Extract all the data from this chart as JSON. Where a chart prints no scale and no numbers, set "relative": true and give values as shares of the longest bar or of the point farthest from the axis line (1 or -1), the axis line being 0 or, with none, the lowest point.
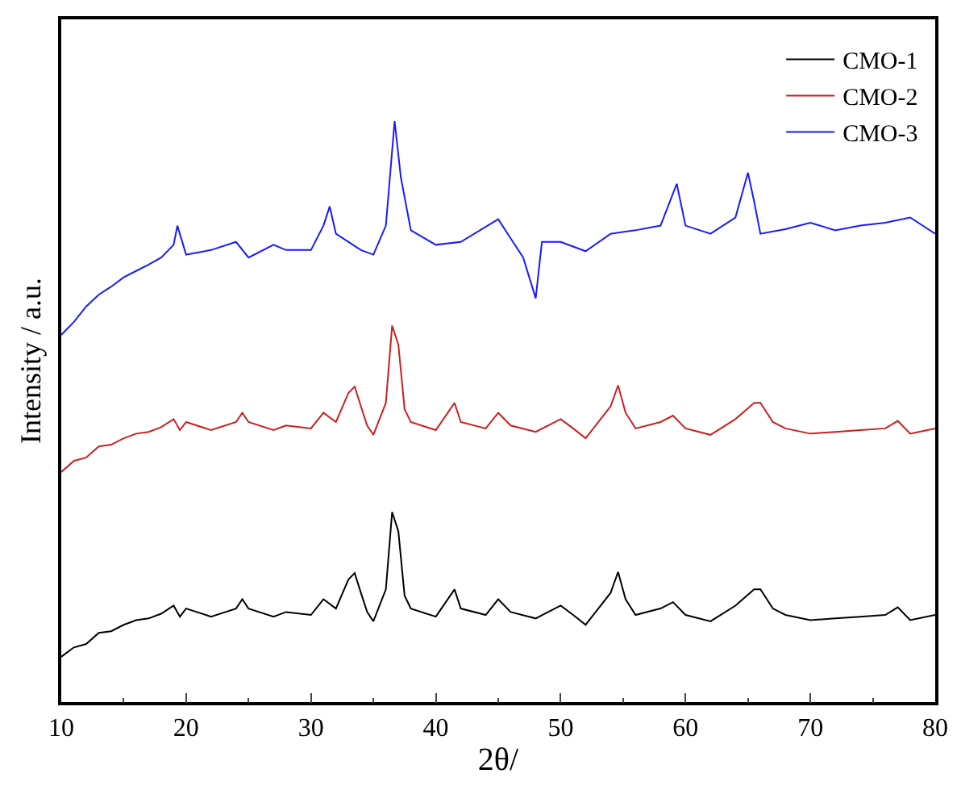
{
  "chart_data": {
    "type": "line",
    "xlabel": "2θ/",
    "ylabel": "Intensity / a.u.",
    "relative": true,
    "xlim": [
      10,
      80
    ],
    "xticks": [
      10,
      20,
      30,
      40,
      50,
      60,
      70,
      80
    ],
    "tick_labels": "x",
    "legend": "top right",
    "series": [
      {
        "name": "CMO-1",
        "color": "#000000",
        "x": [
          10,
          11,
          12,
          13,
          14,
          15,
          16,
          17,
          18,
          19,
          19.5,
          20,
          22,
          24,
          24.5,
          25,
          27,
          28,
          30,
          31,
          32,
          33,
          33.5,
          34,
          34.5,
          35,
          36,
          36.5,
          37,
          37.5,
          38,
          40,
          41.5,
          42,
          44,
          45,
          46,
          48,
          50,
          51,
          52,
          54,
          54.6,
          55.2,
          56,
          58,
          59,
          60,
          62,
          64,
          65.5,
          66,
          67,
          68,
          70,
          72,
          74,
          76,
          77,
          78,
          80
        ],
        "values": [
          0.078,
          0.094,
          0.1,
          0.119,
          0.122,
          0.133,
          0.141,
          0.144,
          0.152,
          0.166,
          0.147,
          0.161,
          0.147,
          0.161,
          0.177,
          0.161,
          0.147,
          0.155,
          0.15,
          0.177,
          0.161,
          0.211,
          0.222,
          0.188,
          0.155,
          0.139,
          0.194,
          0.327,
          0.294,
          0.183,
          0.161,
          0.147,
          0.194,
          0.161,
          0.15,
          0.177,
          0.155,
          0.144,
          0.166,
          0.15,
          0.133,
          0.188,
          0.224,
          0.177,
          0.15,
          0.161,
          0.172,
          0.15,
          0.139,
          0.166,
          0.194,
          0.194,
          0.161,
          0.15,
          0.141,
          0.144,
          0.147,
          0.15,
          0.163,
          0.141,
          0.15
        ]
      },
      {
        "name": "CMO-2",
        "color": "#cc1f1f",
        "x": [
          10,
          11,
          12,
          13,
          14,
          15,
          16,
          17,
          18,
          19,
          19.5,
          20,
          22,
          24,
          24.5,
          25,
          27,
          28,
          30,
          31,
          32,
          33,
          33.5,
          34,
          34.5,
          35,
          36,
          36.5,
          37,
          37.5,
          38,
          40,
          41.5,
          42,
          44,
          45,
          46,
          48,
          50,
          51,
          52,
          54,
          54.6,
          55.2,
          56,
          58,
          59,
          60,
          62,
          64,
          65.5,
          66,
          67,
          68,
          70,
          72,
          74,
          76,
          77,
          78,
          80
        ],
        "values": [
          0.396,
          0.415,
          0.421,
          0.44,
          0.443,
          0.454,
          0.462,
          0.465,
          0.473,
          0.487,
          0.468,
          0.482,
          0.468,
          0.482,
          0.498,
          0.482,
          0.468,
          0.476,
          0.471,
          0.498,
          0.482,
          0.532,
          0.543,
          0.509,
          0.476,
          0.46,
          0.515,
          0.648,
          0.615,
          0.504,
          0.482,
          0.468,
          0.515,
          0.482,
          0.471,
          0.498,
          0.476,
          0.465,
          0.487,
          0.471,
          0.454,
          0.509,
          0.545,
          0.498,
          0.471,
          0.482,
          0.493,
          0.471,
          0.46,
          0.487,
          0.515,
          0.515,
          0.482,
          0.471,
          0.462,
          0.465,
          0.468,
          0.471,
          0.484,
          0.462,
          0.471
        ]
      },
      {
        "name": "CMO-3",
        "color": "#1a1aff",
        "x": [
          10,
          11,
          12,
          13,
          14,
          15,
          16,
          17,
          18,
          19,
          19.3,
          20,
          22,
          24,
          25,
          27,
          28,
          30,
          31,
          31.5,
          32,
          34,
          35,
          36,
          36.7,
          37.2,
          38,
          40,
          42,
          45,
          46,
          47,
          48,
          48.5,
          50,
          52,
          54,
          56,
          58,
          59.3,
          60,
          62,
          64,
          65,
          65.5,
          66,
          68,
          70,
          72,
          74,
          76,
          78,
          80
        ],
        "values": [
          0.632,
          0.654,
          0.681,
          0.701,
          0.715,
          0.731,
          0.742,
          0.753,
          0.765,
          0.787,
          0.82,
          0.77,
          0.778,
          0.792,
          0.765,
          0.787,
          0.778,
          0.778,
          0.82,
          0.853,
          0.806,
          0.778,
          0.77,
          0.82,
          1,
          0.903,
          0.812,
          0.787,
          0.792,
          0.831,
          0.798,
          0.765,
          0.695,
          0.792,
          0.792,
          0.776,
          0.806,
          0.812,
          0.82,
          0.892,
          0.82,
          0.806,
          0.834,
          0.911,
          0.861,
          0.806,
          0.814,
          0.825,
          0.812,
          0.82,
          0.825,
          0.834,
          0.806
        ]
      }
    ]
  }
}
